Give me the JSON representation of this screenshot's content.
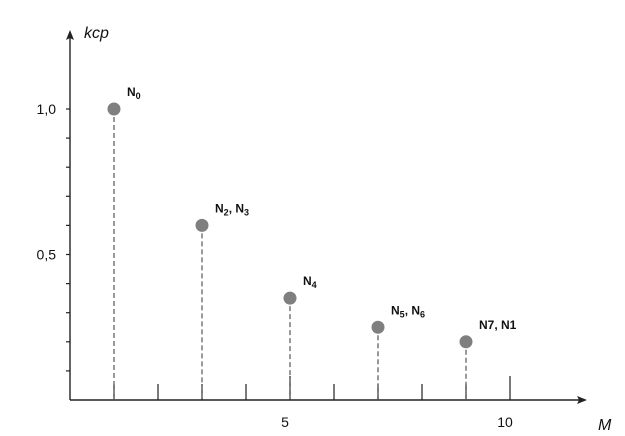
{
  "chart_data": {
    "type": "scatter",
    "title": "",
    "xlabel": "M",
    "ylabel": "kcp",
    "xlim": [
      0,
      11.5
    ],
    "ylim": [
      0,
      1.25
    ],
    "grid": false,
    "x_ticks": [
      1,
      2,
      3,
      4,
      5,
      6,
      7,
      8,
      9,
      10
    ],
    "x_tick_labels": [
      {
        "value": 5,
        "label": "5"
      },
      {
        "value": 10,
        "label": "10"
      }
    ],
    "y_ticks": [
      0.1,
      0.2,
      0.3,
      0.4,
      0.5,
      0.6,
      0.7,
      0.8,
      0.9,
      1.0
    ],
    "y_tick_labels": [
      {
        "value": 0.5,
        "label": "0,5"
      },
      {
        "value": 1.0,
        "label": "1,0"
      }
    ],
    "points": [
      {
        "x": 1,
        "y": 1.0,
        "label": [
          {
            "t": "N"
          },
          {
            "t": "0",
            "sub": true
          }
        ]
      },
      {
        "x": 3,
        "y": 0.6,
        "label": [
          {
            "t": "N"
          },
          {
            "t": "2",
            "sub": true
          },
          {
            "t": ", N"
          },
          {
            "t": "3",
            "sub": true
          }
        ]
      },
      {
        "x": 5,
        "y": 0.35,
        "label": [
          {
            "t": "N"
          },
          {
            "t": "4",
            "sub": true
          }
        ]
      },
      {
        "x": 7,
        "y": 0.25,
        "label": [
          {
            "t": "N"
          },
          {
            "t": "5",
            "sub": true
          },
          {
            "t": ", N"
          },
          {
            "t": "6",
            "sub": true
          }
        ]
      },
      {
        "x": 9,
        "y": 0.2,
        "label": [
          {
            "t": "N7, N1"
          }
        ]
      }
    ]
  }
}
